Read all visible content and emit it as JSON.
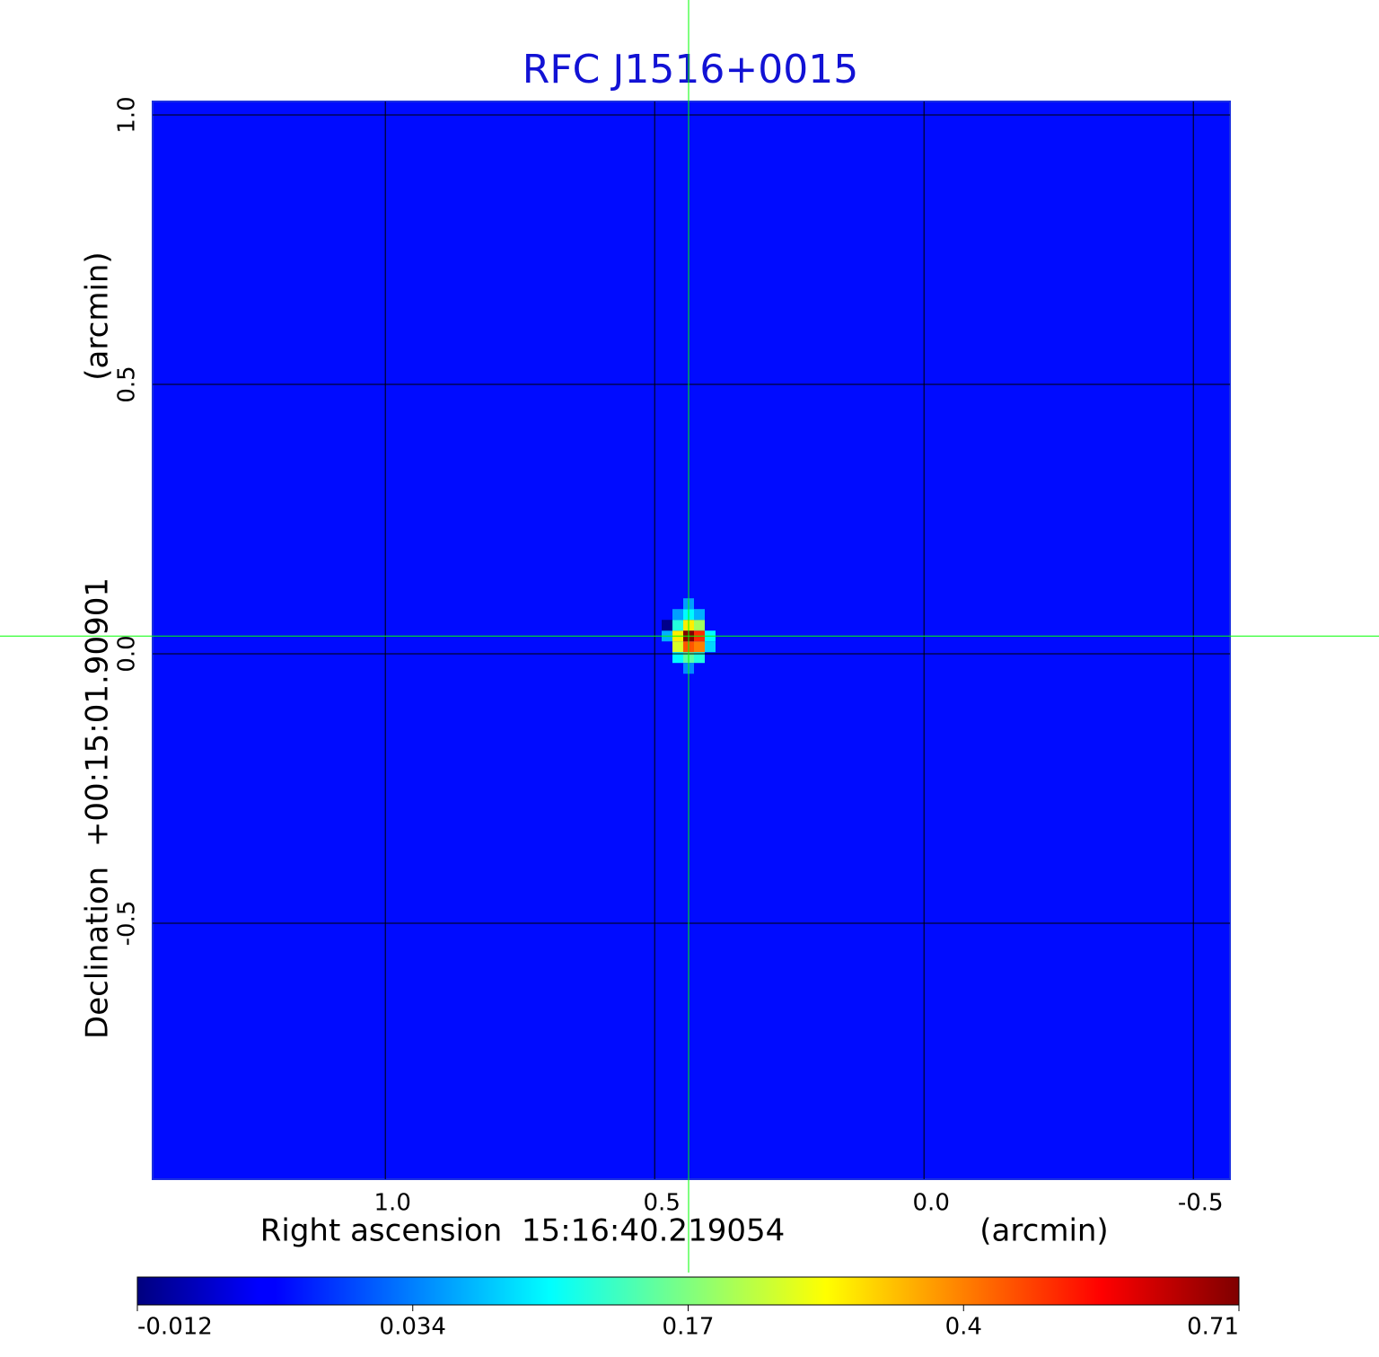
{
  "chart_data": {
    "type": "image",
    "title": "RFC J1516+0015",
    "xlabel": "Right ascension  15:16:40.219054",
    "xunit": "(arcmin)",
    "ylabel": "Declination  +00:15:01.90901",
    "yunit": "(arcmin)",
    "xlim": [
      1.432,
      -0.568
    ],
    "ylim": [
      -0.975,
      1.025
    ],
    "xticks": [
      {
        "value": 1,
        "label": "1.0"
      },
      0.5,
      {
        "value": 0,
        "label": "0.0"
      },
      -0.5
    ],
    "yticks": [
      {
        "value": 1,
        "label": "1.0"
      },
      0.5,
      {
        "value": 0,
        "label": "0.0"
      },
      -0.5
    ],
    "grid": true,
    "cmap": "jet",
    "colorbar": {
      "ticks": [
        -0.012,
        0.034,
        0.17,
        0.4,
        0.71
      ]
    },
    "crosshair": {
      "x": 0.437,
      "y": 0.033,
      "color": "#00ff00"
    },
    "image": {
      "background": 0.013,
      "pixel": 0.02,
      "x": [
        0.437,
        0.417,
        0.437,
        0.417,
        0.457,
        0.457,
        0.437,
        0.417,
        0.457,
        0.437,
        0.437,
        0.417,
        0.457,
        0.397,
        0.397,
        0.477,
        0.437,
        0.417,
        0.457,
        0.437,
        0.477
      ],
      "y": [
        0.033,
        0.033,
        0.013,
        0.013,
        0.033,
        0.013,
        0.053,
        0.053,
        0.053,
        0.073,
        -0.007,
        -0.007,
        -0.007,
        0.033,
        0.013,
        0.033,
        0.093,
        0.073,
        0.073,
        -0.027,
        0.053
      ],
      "values": [
        0.71,
        0.5,
        0.45,
        0.4,
        0.3,
        0.25,
        0.3,
        0.2,
        0.12,
        0.1,
        0.15,
        0.12,
        0.1,
        0.1,
        0.08,
        0.06,
        0.05,
        0.06,
        0.05,
        0.04,
        -0.01
      ]
    }
  }
}
